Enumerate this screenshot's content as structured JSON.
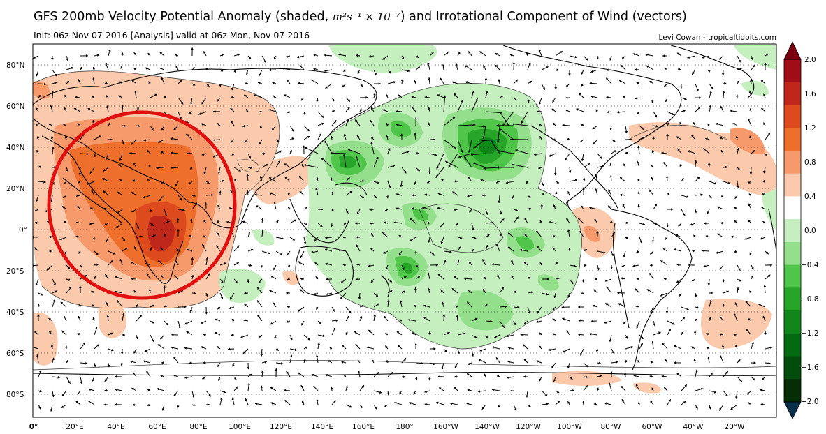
{
  "title": {
    "prefix": "GFS 200mb Velocity Potential Anomaly (shaded, ",
    "math": "m²s⁻¹ × 10⁻⁷",
    "suffix": ") and Irrotational Component of Wind (vectors)"
  },
  "subtitle": "Init: 06z Nov 07 2016 [Analysis] valid at 06z Mon, Nov 07 2016",
  "credit": "Levi Cowan - tropicaltidbits.com",
  "lat_labels": [
    "80°N",
    "60°N",
    "40°N",
    "20°N",
    "0°",
    "20°S",
    "40°S",
    "60°S",
    "80°S"
  ],
  "lon_labels": [
    "0°",
    "20°E",
    "40°E",
    "60°E",
    "80°E",
    "100°E",
    "120°E",
    "140°E",
    "160°E",
    "180°",
    "160°W",
    "140°W",
    "120°W",
    "100°W",
    "80°W",
    "60°W",
    "40°W",
    "20°W"
  ],
  "colorbar": {
    "labels": [
      "2.0",
      "1.6",
      "1.2",
      "0.8",
      "0.4",
      "0.0",
      "−0.4",
      "−0.8",
      "−1.2",
      "−1.6",
      "−2.0"
    ],
    "colors": [
      "#7b0010",
      "#a00d16",
      "#c0271b",
      "#dc4a1e",
      "#ee6e2b",
      "#f69a6b",
      "#fbc9ab",
      "#ffffff",
      "#c6efc0",
      "#94df8c",
      "#4fc64a",
      "#27a528",
      "#10861b",
      "#046a12",
      "#024d0c",
      "#052d06",
      "#083049"
    ]
  },
  "colors": {
    "positive_light": "#fbc9ab",
    "positive_mid": "#f69a6b",
    "positive_strong": "#ee6e2b",
    "positive_max": "#c0271b",
    "negative_light": "#c6efc0",
    "negative_mid": "#94df8c",
    "negative_strong": "#4fc64a",
    "negative_max": "#10861b",
    "highlight_circle": "#e01010"
  }
}
